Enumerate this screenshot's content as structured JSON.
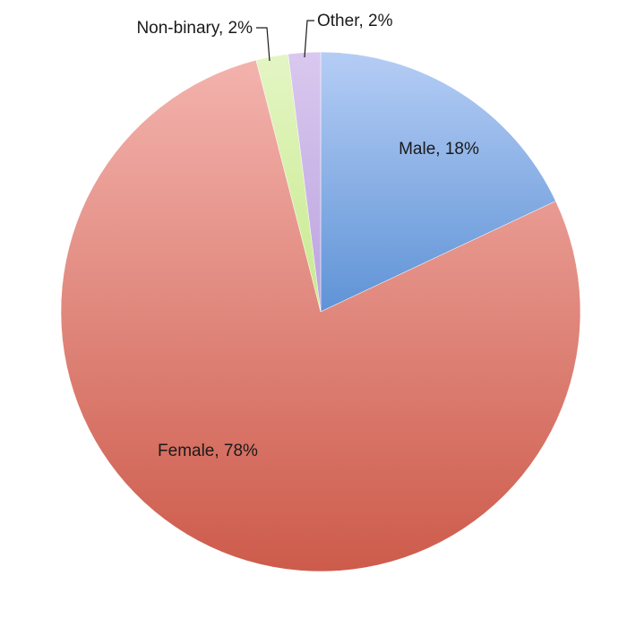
{
  "chart_data": {
    "type": "pie",
    "title": "",
    "start_angle_deg": 0,
    "direction": "clockwise",
    "legend": "none",
    "slices": [
      {
        "key": "male",
        "label": "Male, 18%",
        "value": 18,
        "color_light": "#b5cdf5",
        "color_dark": "#5f93d6"
      },
      {
        "key": "female",
        "label": "Female, 78%",
        "value": 78,
        "color_light": "#f3b3ad",
        "color_dark": "#cd5b4b"
      },
      {
        "key": "nonbinary",
        "label": "Non-binary, 2%",
        "value": 2,
        "color_light": "#e4f5c4",
        "color_dark": "#c7ea8d"
      },
      {
        "key": "other",
        "label": "Other, 2%",
        "value": 2,
        "color_light": "#d9c8ee",
        "color_dark": "#bba3e0"
      }
    ]
  }
}
